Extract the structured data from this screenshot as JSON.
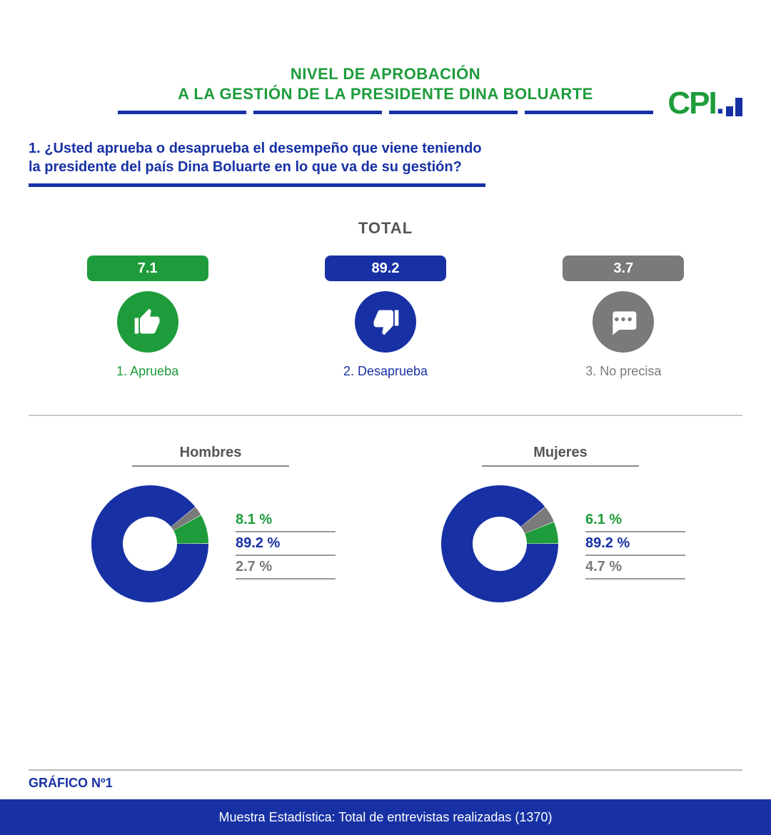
{
  "logo": {
    "text": "CPI"
  },
  "title": {
    "line1": "NIVEL DE APROBACIÓN",
    "line2": "A LA GESTIÓN DE LA PRESIDENTE DINA BOLUARTE",
    "underline_color": "#1731a4"
  },
  "question": {
    "prefix": "1. ",
    "line1": "1. ¿Usted aprueba o desaprueba el desempeño que viene teniendo",
    "line2": "la presidente del país Dina Boluarte en lo que va de su gestión?"
  },
  "total_label": "TOTAL",
  "categories": [
    {
      "value": "7.1",
      "label": "1. Aprueba",
      "color": "#1e9c3b",
      "label_color": "#1e9c3b",
      "icon": "thumbs-up"
    },
    {
      "value": "89.2",
      "label": "2. Desaprueba",
      "color": "#1731a4",
      "label_color": "#1731a4",
      "icon": "thumbs-down"
    },
    {
      "value": "3.7",
      "label": "3. No precisa",
      "color": "#7a7a7a",
      "label_color": "#7a7a7a",
      "icon": "speech"
    }
  ],
  "donuts": [
    {
      "title": "Hombres",
      "segments": [
        {
          "label": "8.1 %",
          "value": 8.1,
          "color": "#1e9c3b"
        },
        {
          "label": "89.2 %",
          "value": 89.2,
          "color": "#1731a4"
        },
        {
          "label": "2.7 %",
          "value": 2.7,
          "color": "#7a7a7a"
        }
      ],
      "inner_radius": 38,
      "outer_radius": 82
    },
    {
      "title": "Mujeres",
      "segments": [
        {
          "label": "6.1 %",
          "value": 6.1,
          "color": "#1e9c3b"
        },
        {
          "label": "89.2 %",
          "value": 89.2,
          "color": "#1731a4"
        },
        {
          "label": "4.7 %",
          "value": 4.7,
          "color": "#7a7a7a"
        }
      ],
      "inner_radius": 38,
      "outer_radius": 82
    }
  ],
  "grafico_label": "GRÁFICO Nº1",
  "footer": "Muestra Estadística: Total de entrevistas realizadas (1370)",
  "colors": {
    "green": "#1e9c3b",
    "blue": "#1731a4",
    "gray": "#7a7a7a",
    "text_gray": "#555555",
    "background": "#ffffff"
  },
  "typography": {
    "title_fontsize": 22,
    "question_fontsize": 20,
    "pill_fontsize": 20,
    "legend_fontsize": 20
  }
}
